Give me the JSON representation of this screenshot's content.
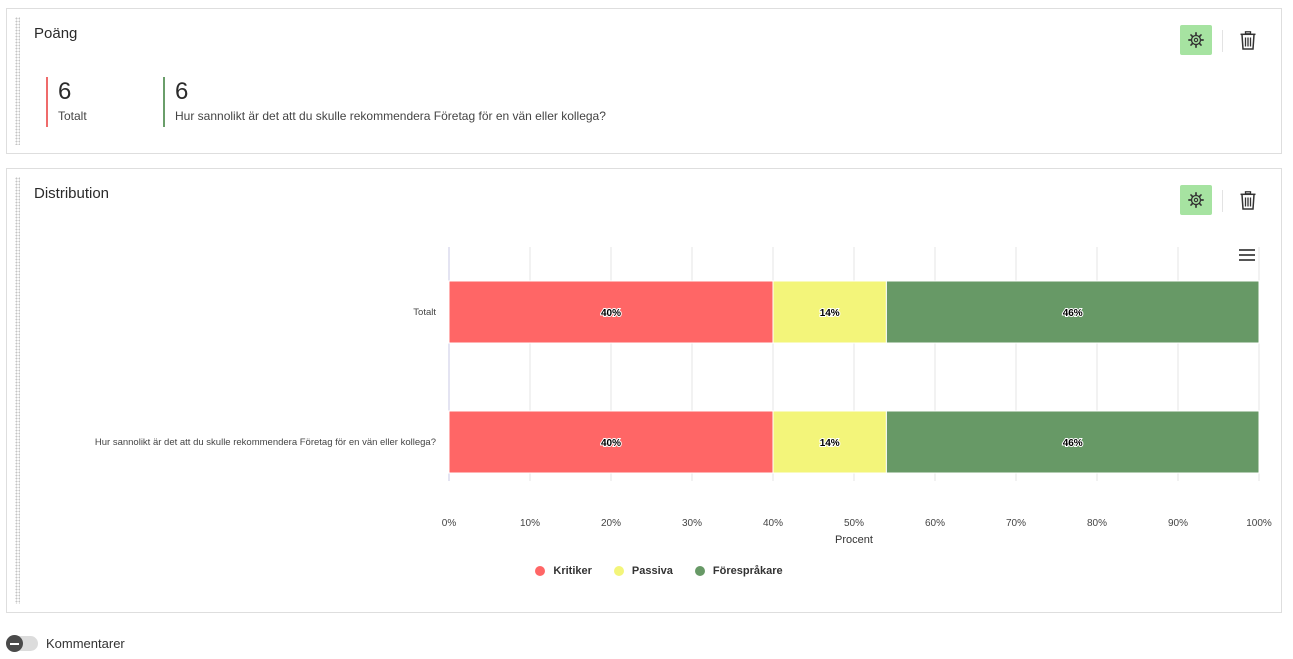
{
  "score_panel": {
    "title": "Poäng",
    "scores": [
      {
        "value": "6",
        "label": "Totalt",
        "color": "#ef6b6b"
      },
      {
        "value": "6",
        "label": "Hur sannolikt är det att du skulle rekommendera Företag för en vän eller kollega?",
        "color": "#6a9e6a"
      }
    ]
  },
  "distribution_panel": {
    "title": "Distribution"
  },
  "chart_data": {
    "type": "bar",
    "orientation": "horizontal",
    "stacked": true,
    "categories": [
      "Totalt",
      "Hur sannolikt är det att du skulle rekommendera Företag för en vän eller kollega?"
    ],
    "series": [
      {
        "name": "Kritiker",
        "color": "#ff6666",
        "values": [
          40,
          40
        ],
        "labels": [
          "40%",
          "40%"
        ]
      },
      {
        "name": "Passiva",
        "color": "#f3f57a",
        "values": [
          14,
          14
        ],
        "labels": [
          "14%",
          "14%"
        ]
      },
      {
        "name": "Förespråkare",
        "color": "#679966",
        "values": [
          46,
          46
        ],
        "labels": [
          "46%",
          "46%"
        ]
      }
    ],
    "xlabel": "Procent",
    "xlim": [
      0,
      100
    ],
    "xticks": [
      "0%",
      "10%",
      "20%",
      "30%",
      "40%",
      "50%",
      "60%",
      "70%",
      "80%",
      "90%",
      "100%"
    ],
    "grid": true,
    "legend": "bottom-center"
  },
  "footer": {
    "toggle_label": "Kommentarer"
  },
  "colors": {
    "settings_button_bg": "#a6e3a1"
  }
}
